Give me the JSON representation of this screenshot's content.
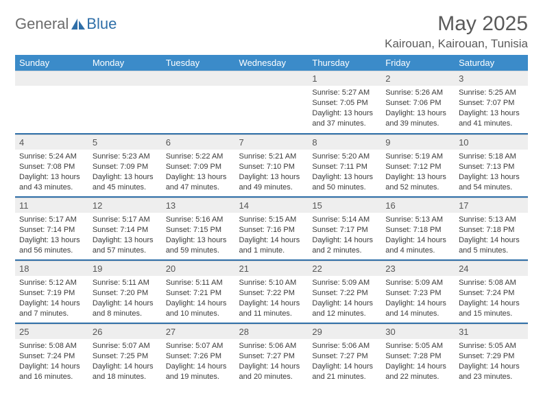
{
  "logo": {
    "part1": "General",
    "part2": "Blue"
  },
  "title": "May 2025",
  "location": "Kairouan, Kairouan, Tunisia",
  "colors": {
    "header_bg": "#3b8bc9",
    "divider": "#2f6fa8",
    "daybar_bg": "#eeeeee",
    "text": "#3a3a3a",
    "logo_gray": "#6b6b6b",
    "logo_blue": "#2f6fa8"
  },
  "weekdays": [
    "Sunday",
    "Monday",
    "Tuesday",
    "Wednesday",
    "Thursday",
    "Friday",
    "Saturday"
  ],
  "weeks": [
    [
      null,
      null,
      null,
      null,
      {
        "n": "1",
        "sr": "5:27 AM",
        "ss": "7:05 PM",
        "dl": "13 hours and 37 minutes."
      },
      {
        "n": "2",
        "sr": "5:26 AM",
        "ss": "7:06 PM",
        "dl": "13 hours and 39 minutes."
      },
      {
        "n": "3",
        "sr": "5:25 AM",
        "ss": "7:07 PM",
        "dl": "13 hours and 41 minutes."
      }
    ],
    [
      {
        "n": "4",
        "sr": "5:24 AM",
        "ss": "7:08 PM",
        "dl": "13 hours and 43 minutes."
      },
      {
        "n": "5",
        "sr": "5:23 AM",
        "ss": "7:09 PM",
        "dl": "13 hours and 45 minutes."
      },
      {
        "n": "6",
        "sr": "5:22 AM",
        "ss": "7:09 PM",
        "dl": "13 hours and 47 minutes."
      },
      {
        "n": "7",
        "sr": "5:21 AM",
        "ss": "7:10 PM",
        "dl": "13 hours and 49 minutes."
      },
      {
        "n": "8",
        "sr": "5:20 AM",
        "ss": "7:11 PM",
        "dl": "13 hours and 50 minutes."
      },
      {
        "n": "9",
        "sr": "5:19 AM",
        "ss": "7:12 PM",
        "dl": "13 hours and 52 minutes."
      },
      {
        "n": "10",
        "sr": "5:18 AM",
        "ss": "7:13 PM",
        "dl": "13 hours and 54 minutes."
      }
    ],
    [
      {
        "n": "11",
        "sr": "5:17 AM",
        "ss": "7:14 PM",
        "dl": "13 hours and 56 minutes."
      },
      {
        "n": "12",
        "sr": "5:17 AM",
        "ss": "7:14 PM",
        "dl": "13 hours and 57 minutes."
      },
      {
        "n": "13",
        "sr": "5:16 AM",
        "ss": "7:15 PM",
        "dl": "13 hours and 59 minutes."
      },
      {
        "n": "14",
        "sr": "5:15 AM",
        "ss": "7:16 PM",
        "dl": "14 hours and 1 minute."
      },
      {
        "n": "15",
        "sr": "5:14 AM",
        "ss": "7:17 PM",
        "dl": "14 hours and 2 minutes."
      },
      {
        "n": "16",
        "sr": "5:13 AM",
        "ss": "7:18 PM",
        "dl": "14 hours and 4 minutes."
      },
      {
        "n": "17",
        "sr": "5:13 AM",
        "ss": "7:18 PM",
        "dl": "14 hours and 5 minutes."
      }
    ],
    [
      {
        "n": "18",
        "sr": "5:12 AM",
        "ss": "7:19 PM",
        "dl": "14 hours and 7 minutes."
      },
      {
        "n": "19",
        "sr": "5:11 AM",
        "ss": "7:20 PM",
        "dl": "14 hours and 8 minutes."
      },
      {
        "n": "20",
        "sr": "5:11 AM",
        "ss": "7:21 PM",
        "dl": "14 hours and 10 minutes."
      },
      {
        "n": "21",
        "sr": "5:10 AM",
        "ss": "7:22 PM",
        "dl": "14 hours and 11 minutes."
      },
      {
        "n": "22",
        "sr": "5:09 AM",
        "ss": "7:22 PM",
        "dl": "14 hours and 12 minutes."
      },
      {
        "n": "23",
        "sr": "5:09 AM",
        "ss": "7:23 PM",
        "dl": "14 hours and 14 minutes."
      },
      {
        "n": "24",
        "sr": "5:08 AM",
        "ss": "7:24 PM",
        "dl": "14 hours and 15 minutes."
      }
    ],
    [
      {
        "n": "25",
        "sr": "5:08 AM",
        "ss": "7:24 PM",
        "dl": "14 hours and 16 minutes."
      },
      {
        "n": "26",
        "sr": "5:07 AM",
        "ss": "7:25 PM",
        "dl": "14 hours and 18 minutes."
      },
      {
        "n": "27",
        "sr": "5:07 AM",
        "ss": "7:26 PM",
        "dl": "14 hours and 19 minutes."
      },
      {
        "n": "28",
        "sr": "5:06 AM",
        "ss": "7:27 PM",
        "dl": "14 hours and 20 minutes."
      },
      {
        "n": "29",
        "sr": "5:06 AM",
        "ss": "7:27 PM",
        "dl": "14 hours and 21 minutes."
      },
      {
        "n": "30",
        "sr": "5:05 AM",
        "ss": "7:28 PM",
        "dl": "14 hours and 22 minutes."
      },
      {
        "n": "31",
        "sr": "5:05 AM",
        "ss": "7:29 PM",
        "dl": "14 hours and 23 minutes."
      }
    ]
  ],
  "labels": {
    "sunrise": "Sunrise:",
    "sunset": "Sunset:",
    "daylight": "Daylight:"
  }
}
